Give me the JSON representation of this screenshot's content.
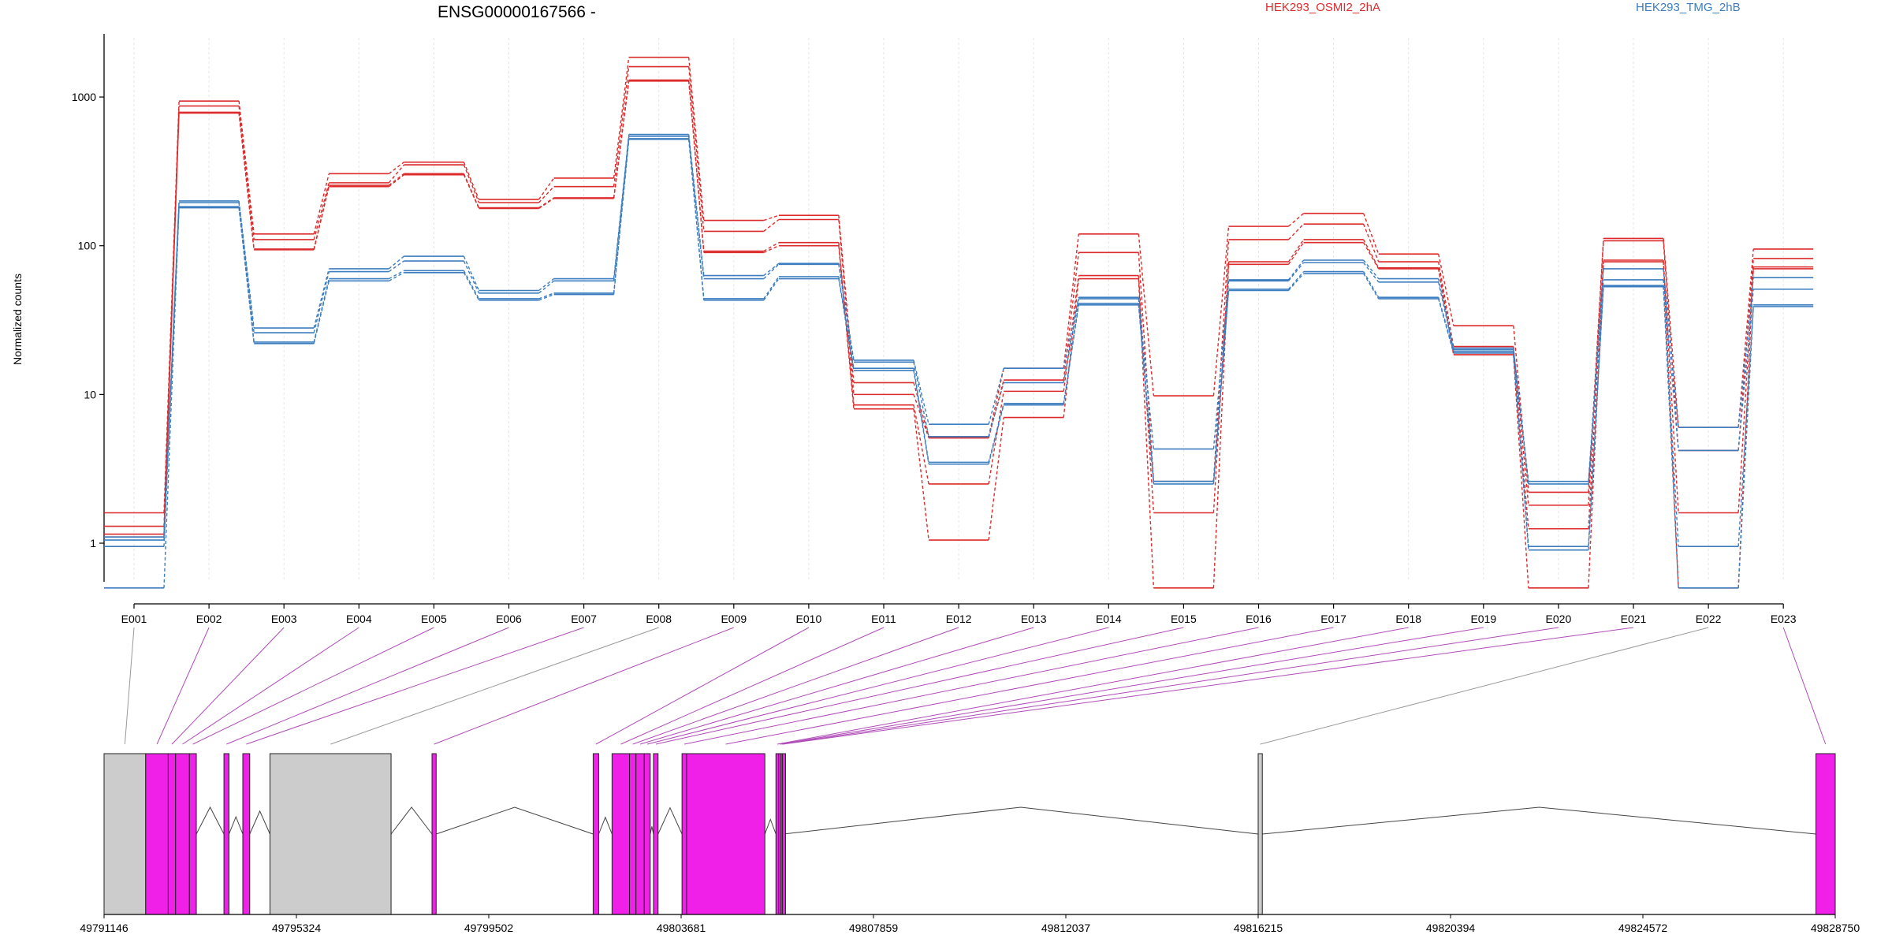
{
  "chart_data": {
    "type": "line",
    "title": "ENSG00000167566 -",
    "ylabel": "Normalized counts",
    "yscale": "log",
    "ylim": [
      0.55,
      2500
    ],
    "yticks": [
      {
        "value": 1,
        "label": "1"
      },
      {
        "value": 10,
        "label": "10"
      },
      {
        "value": 100,
        "label": "100"
      },
      {
        "value": 1000,
        "label": "1000"
      }
    ],
    "categories": [
      "E001",
      "E002",
      "E003",
      "E004",
      "E005",
      "E006",
      "E007",
      "E008",
      "E009",
      "E010",
      "E011",
      "E012",
      "E013",
      "E014",
      "E015",
      "E016",
      "E017",
      "E018",
      "E019",
      "E020",
      "E021",
      "E022",
      "E023"
    ],
    "grid": "vertical-light",
    "legend": [
      {
        "name": "HEK293_OSMI2_2hA",
        "color": "#dd2a2a"
      },
      {
        "name": "HEK293_TMG_2hB",
        "color": "#3b7dbf"
      }
    ],
    "series": [
      {
        "name": "HEK293_OSMI2_2hA",
        "color": "#dd2a2a",
        "values": [
          1.6,
          940,
          120,
          305,
          365,
          205,
          285,
          1850,
          148,
          160,
          12,
          5.2,
          15,
          120,
          9.8,
          135,
          165,
          88,
          29,
          2.2,
          112,
          6,
          95
        ]
      },
      {
        "name": "HEK293_OSMI2_2hA",
        "color": "#dd2a2a",
        "values": [
          1.3,
          870,
          110,
          265,
          350,
          195,
          250,
          1600,
          125,
          150,
          10,
          5.1,
          12.5,
          90,
          2.6,
          110,
          140,
          78,
          21,
          1.8,
          108,
          4.2,
          82
        ]
      },
      {
        "name": "HEK293_OSMI2_2hA",
        "color": "#dd2a2a",
        "values": [
          1.15,
          790,
          95,
          255,
          305,
          180,
          210,
          1300,
          92,
          105,
          8.5,
          2.5,
          10.5,
          63,
          1.6,
          78,
          110,
          71,
          19,
          1.25,
          80,
          1.6,
          72
        ]
      },
      {
        "name": "HEK293_OSMI2_2hA",
        "color": "#dd2a2a",
        "values": [
          1.1,
          780,
          94,
          250,
          300,
          178,
          208,
          1280,
          90,
          100,
          8,
          1.05,
          7,
          60,
          0.5,
          75,
          105,
          70,
          18.5,
          0.5,
          78,
          0.5,
          70
        ]
      },
      {
        "name": "HEK293_TMG_2hB",
        "color": "#3b7dbf",
        "values": [
          1.1,
          200,
          28,
          70,
          85,
          50,
          60,
          560,
          63,
          76,
          17,
          6.3,
          15,
          45,
          4.3,
          59,
          80,
          60,
          20.5,
          2.6,
          70,
          6,
          61
        ]
      },
      {
        "name": "HEK293_TMG_2hB",
        "color": "#3b7dbf",
        "values": [
          1.05,
          195,
          26,
          67,
          79,
          48,
          58,
          545,
          60,
          75,
          16.5,
          5.2,
          12,
          44,
          2.6,
          58,
          77,
          57,
          20,
          2.5,
          59,
          4.2,
          51
        ]
      },
      {
        "name": "HEK293_TMG_2hB",
        "color": "#3b7dbf",
        "values": [
          0.95,
          183,
          22.5,
          60,
          68,
          44,
          48,
          525,
          44,
          62,
          15,
          3.5,
          8.7,
          41,
          2.6,
          51,
          67,
          45,
          19.5,
          0.95,
          54,
          0.95,
          40
        ]
      },
      {
        "name": "HEK293_TMG_2hB",
        "color": "#3b7dbf",
        "values": [
          0.5,
          180,
          22,
          58,
          66,
          43,
          47,
          520,
          43,
          60,
          14.5,
          3.4,
          8.5,
          40,
          2.5,
          50,
          65,
          44,
          19,
          0.9,
          53,
          0.5,
          39
        ]
      }
    ],
    "gene_model": {
      "xlim": [
        49791146,
        49828750
      ],
      "xticks": [
        "49791146",
        "49795324",
        "49799502",
        "49803681",
        "49807859",
        "49812037",
        "49816215",
        "49820394",
        "49824572",
        "49828750"
      ],
      "exon_color": "#f020e8",
      "excluded_color": "#cccccc",
      "excluded_connector_color": "#999999",
      "connector_color": "#b04ab8",
      "exons": [
        {
          "start": 49791146,
          "end": 49792050,
          "exon": "E001",
          "included": false
        },
        {
          "start": 49792050,
          "end": 49792540,
          "exon": "E002",
          "included": true
        },
        {
          "start": 49792540,
          "end": 49792700,
          "exon": "E003",
          "included": true
        },
        {
          "start": 49792700,
          "end": 49793000,
          "exon": "E004",
          "included": true
        },
        {
          "start": 49793000,
          "end": 49793150,
          "exon": "E005",
          "included": true
        },
        {
          "start": 49793750,
          "end": 49793860,
          "exon": "E006",
          "included": true
        },
        {
          "start": 49794160,
          "end": 49794310,
          "exon": "E007",
          "included": true
        },
        {
          "start": 49794750,
          "end": 49797380,
          "exon": "E008",
          "included": false
        },
        {
          "start": 49798270,
          "end": 49798360,
          "exon": "E009",
          "included": true
        },
        {
          "start": 49801770,
          "end": 49801890,
          "exon": "E010",
          "included": true
        },
        {
          "start": 49802180,
          "end": 49802560,
          "exon": "E011",
          "included": true
        },
        {
          "start": 49802560,
          "end": 49802700,
          "exon": "E012",
          "included": true
        },
        {
          "start": 49802700,
          "end": 49802880,
          "exon": "E013",
          "included": true
        },
        {
          "start": 49802880,
          "end": 49803010,
          "exon": "E014",
          "included": true
        },
        {
          "start": 49803080,
          "end": 49803180,
          "exon": "E015",
          "included": true
        },
        {
          "start": 49803700,
          "end": 49803800,
          "exon": "E016",
          "included": true
        },
        {
          "start": 49803800,
          "end": 49805500,
          "exon": "E017",
          "included": true
        },
        {
          "start": 49805740,
          "end": 49805800,
          "exon": "E018",
          "included": true
        },
        {
          "start": 49805800,
          "end": 49805850,
          "exon": "E019",
          "included": true
        },
        {
          "start": 49805850,
          "end": 49805880,
          "exon": "E020",
          "included": true
        },
        {
          "start": 49805880,
          "end": 49805900,
          "exon": "E021",
          "included": true
        },
        {
          "start": 49816215,
          "end": 49816305,
          "exon": "E022",
          "included": false
        },
        {
          "start": 49828330,
          "end": 49828750,
          "exon": "E023",
          "included": true
        }
      ]
    }
  }
}
